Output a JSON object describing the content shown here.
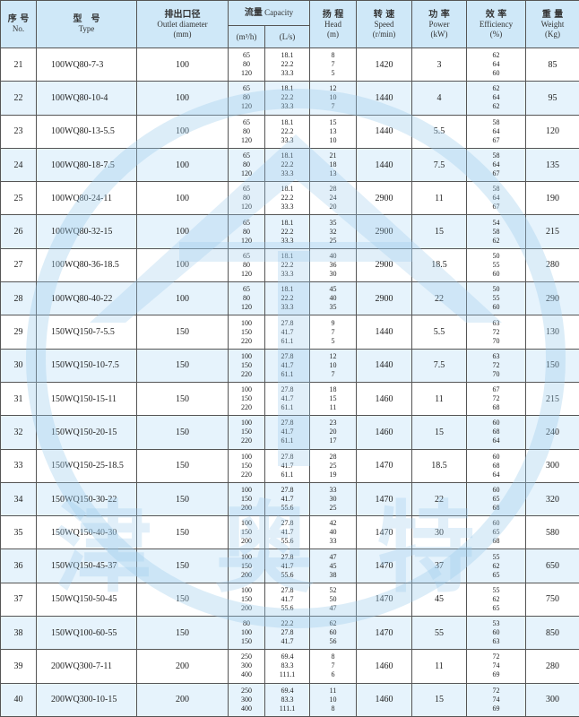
{
  "header": {
    "no_zh": "序 号",
    "no_en": "No.",
    "type_zh": "型　号",
    "type_en": "Type",
    "outlet_zh": "排出口径",
    "outlet_en": "Outlet diameter",
    "outlet_unit": "(mm)",
    "capacity_zh": "流量",
    "capacity_en": "Capacity",
    "capacity_unit1": "(m³/h)",
    "capacity_unit2": "(L/s)",
    "head_zh": "扬 程",
    "head_en": "Head",
    "head_unit": "(m)",
    "speed_zh": "转 速",
    "speed_en": "Speed",
    "speed_unit": "(r/min)",
    "power_zh": "功 率",
    "power_en": "Power",
    "power_unit": "(kW)",
    "eff_zh": "效 率",
    "eff_en": "Efficiency",
    "eff_unit": "(%)",
    "weight_zh": "重 量",
    "weight_en": "Weight",
    "weight_unit": "(Kg)"
  },
  "watermark": {
    "text": "津奥特",
    "color": "#9ccbeb"
  },
  "colors": {
    "header_bg": "#cfe8f8",
    "alt_row_bg": "#e6f3fc"
  },
  "rows": [
    {
      "no": "21",
      "type": "100WQ80-7-3",
      "outlet": "100",
      "q1": [
        "65",
        "80",
        "120"
      ],
      "q2": [
        "18.1",
        "22.2",
        "33.3"
      ],
      "head": [
        "8",
        "7",
        "5"
      ],
      "speed": "1420",
      "power": "3",
      "eff": [
        "62",
        "64",
        "60"
      ],
      "weight": "85"
    },
    {
      "no": "22",
      "type": "100WQ80-10-4",
      "outlet": "100",
      "q1": [
        "65",
        "80",
        "120"
      ],
      "q2": [
        "18.1",
        "22.2",
        "33.3"
      ],
      "head": [
        "12",
        "10",
        "7"
      ],
      "speed": "1440",
      "power": "4",
      "eff": [
        "62",
        "64",
        "62"
      ],
      "weight": "95"
    },
    {
      "no": "23",
      "type": "100WQ80-13-5.5",
      "outlet": "100",
      "q1": [
        "65",
        "80",
        "120"
      ],
      "q2": [
        "18.1",
        "22.2",
        "33.3"
      ],
      "head": [
        "15",
        "13",
        "10"
      ],
      "speed": "1440",
      "power": "5.5",
      "eff": [
        "58",
        "64",
        "67"
      ],
      "weight": "120"
    },
    {
      "no": "24",
      "type": "100WQ80-18-7.5",
      "outlet": "100",
      "q1": [
        "65",
        "80",
        "120"
      ],
      "q2": [
        "18.1",
        "22.2",
        "33.3"
      ],
      "head": [
        "21",
        "18",
        "13"
      ],
      "speed": "1440",
      "power": "7.5",
      "eff": [
        "58",
        "64",
        "67"
      ],
      "weight": "135"
    },
    {
      "no": "25",
      "type": "100WQ80-24-11",
      "outlet": "100",
      "q1": [
        "65",
        "80",
        "120"
      ],
      "q2": [
        "18.1",
        "22.2",
        "33.3"
      ],
      "head": [
        "28",
        "24",
        "20"
      ],
      "speed": "2900",
      "power": "11",
      "eff": [
        "58",
        "64",
        "67"
      ],
      "weight": "190"
    },
    {
      "no": "26",
      "type": "100WQ80-32-15",
      "outlet": "100",
      "q1": [
        "65",
        "80",
        "120"
      ],
      "q2": [
        "18.1",
        "22.2",
        "33.3"
      ],
      "head": [
        "35",
        "32",
        "25"
      ],
      "speed": "2900",
      "power": "15",
      "eff": [
        "54",
        "58",
        "62"
      ],
      "weight": "215"
    },
    {
      "no": "27",
      "type": "100WQ80-36-18.5",
      "outlet": "100",
      "q1": [
        "65",
        "80",
        "120"
      ],
      "q2": [
        "18.1",
        "22.2",
        "33.3"
      ],
      "head": [
        "40",
        "36",
        "30"
      ],
      "speed": "2900",
      "power": "18.5",
      "eff": [
        "50",
        "55",
        "60"
      ],
      "weight": "280"
    },
    {
      "no": "28",
      "type": "100WQ80-40-22",
      "outlet": "100",
      "q1": [
        "65",
        "80",
        "120"
      ],
      "q2": [
        "18.1",
        "22.2",
        "33.3"
      ],
      "head": [
        "45",
        "40",
        "35"
      ],
      "speed": "2900",
      "power": "22",
      "eff": [
        "50",
        "55",
        "60"
      ],
      "weight": "290"
    },
    {
      "no": "29",
      "type": "150WQ150-7-5.5",
      "outlet": "150",
      "q1": [
        "100",
        "150",
        "220"
      ],
      "q2": [
        "27.8",
        "41.7",
        "61.1"
      ],
      "head": [
        "9",
        "7",
        "5"
      ],
      "speed": "1440",
      "power": "5.5",
      "eff": [
        "63",
        "72",
        "70"
      ],
      "weight": "130"
    },
    {
      "no": "30",
      "type": "150WQ150-10-7.5",
      "outlet": "150",
      "q1": [
        "100",
        "150",
        "220"
      ],
      "q2": [
        "27.8",
        "41.7",
        "61.1"
      ],
      "head": [
        "12",
        "10",
        "7"
      ],
      "speed": "1440",
      "power": "7.5",
      "eff": [
        "63",
        "72",
        "70"
      ],
      "weight": "150"
    },
    {
      "no": "31",
      "type": "150WQ150-15-11",
      "outlet": "150",
      "q1": [
        "100",
        "150",
        "220"
      ],
      "q2": [
        "27.8",
        "41.7",
        "61.1"
      ],
      "head": [
        "18",
        "15",
        "11"
      ],
      "speed": "1460",
      "power": "11",
      "eff": [
        "67",
        "72",
        "68"
      ],
      "weight": "215"
    },
    {
      "no": "32",
      "type": "150WQ150-20-15",
      "outlet": "150",
      "q1": [
        "100",
        "150",
        "220"
      ],
      "q2": [
        "27.8",
        "41.7",
        "61.1"
      ],
      "head": [
        "23",
        "20",
        "17"
      ],
      "speed": "1460",
      "power": "15",
      "eff": [
        "60",
        "68",
        "64"
      ],
      "weight": "240"
    },
    {
      "no": "33",
      "type": "150WQ150-25-18.5",
      "outlet": "150",
      "q1": [
        "100",
        "150",
        "220"
      ],
      "q2": [
        "27.8",
        "41.7",
        "61.1"
      ],
      "head": [
        "28",
        "25",
        "19"
      ],
      "speed": "1470",
      "power": "18.5",
      "eff": [
        "60",
        "68",
        "64"
      ],
      "weight": "300"
    },
    {
      "no": "34",
      "type": "150WQ150-30-22",
      "outlet": "150",
      "q1": [
        "100",
        "150",
        "200"
      ],
      "q2": [
        "27.8",
        "41.7",
        "55.6"
      ],
      "head": [
        "33",
        "30",
        "25"
      ],
      "speed": "1470",
      "power": "22",
      "eff": [
        "60",
        "65",
        "68"
      ],
      "weight": "320"
    },
    {
      "no": "35",
      "type": "150WQ150-40-30",
      "outlet": "150",
      "q1": [
        "100",
        "150",
        "200"
      ],
      "q2": [
        "27.8",
        "41.7",
        "55.6"
      ],
      "head": [
        "42",
        "40",
        "33"
      ],
      "speed": "1470",
      "power": "30",
      "eff": [
        "60",
        "65",
        "68"
      ],
      "weight": "580"
    },
    {
      "no": "36",
      "type": "150WQ150-45-37",
      "outlet": "150",
      "q1": [
        "100",
        "150",
        "200"
      ],
      "q2": [
        "27.8",
        "41.7",
        "55.6"
      ],
      "head": [
        "47",
        "45",
        "38"
      ],
      "speed": "1470",
      "power": "37",
      "eff": [
        "55",
        "62",
        "65"
      ],
      "weight": "650"
    },
    {
      "no": "37",
      "type": "150WQ150-50-45",
      "outlet": "150",
      "q1": [
        "100",
        "150",
        "200"
      ],
      "q2": [
        "27.8",
        "41.7",
        "55.6"
      ],
      "head": [
        "52",
        "50",
        "47"
      ],
      "speed": "1470",
      "power": "45",
      "eff": [
        "55",
        "62",
        "65"
      ],
      "weight": "750"
    },
    {
      "no": "38",
      "type": "150WQ100-60-55",
      "outlet": "150",
      "q1": [
        "80",
        "100",
        "150"
      ],
      "q2": [
        "22.2",
        "27.8",
        "41.7"
      ],
      "head": [
        "62",
        "60",
        "56"
      ],
      "speed": "1470",
      "power": "55",
      "eff": [
        "53",
        "60",
        "63"
      ],
      "weight": "850"
    },
    {
      "no": "39",
      "type": "200WQ300-7-11",
      "outlet": "200",
      "q1": [
        "250",
        "300",
        "400"
      ],
      "q2": [
        "69.4",
        "83.3",
        "111.1"
      ],
      "head": [
        "8",
        "7",
        "6"
      ],
      "speed": "1460",
      "power": "11",
      "eff": [
        "72",
        "74",
        "69"
      ],
      "weight": "280"
    },
    {
      "no": "40",
      "type": "200WQ300-10-15",
      "outlet": "200",
      "q1": [
        "250",
        "300",
        "400"
      ],
      "q2": [
        "69.4",
        "83.3",
        "111.1"
      ],
      "head": [
        "11",
        "10",
        "8"
      ],
      "speed": "1460",
      "power": "15",
      "eff": [
        "72",
        "74",
        "69"
      ],
      "weight": "300"
    }
  ]
}
